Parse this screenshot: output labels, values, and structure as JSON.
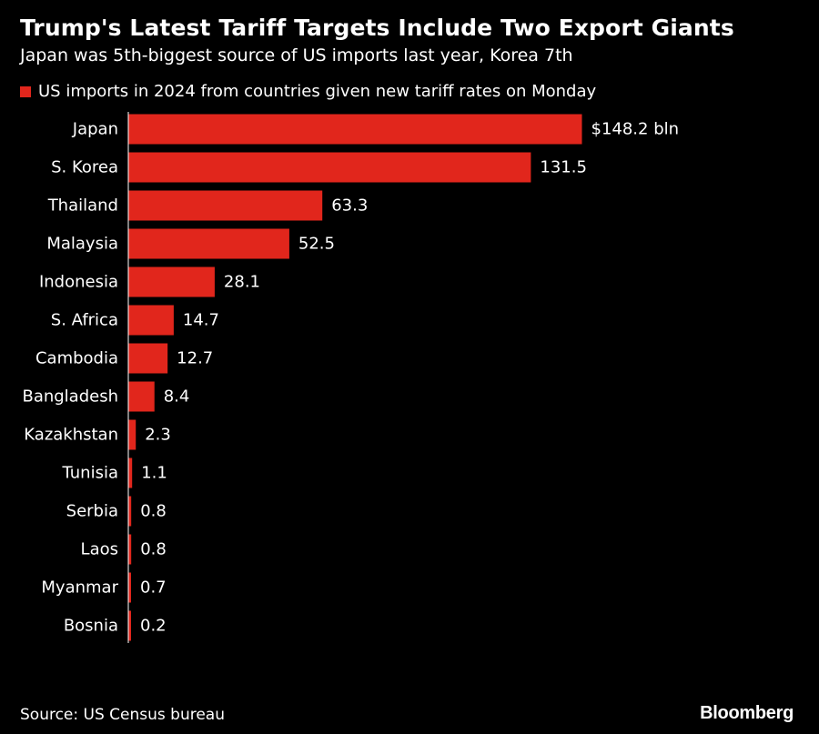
{
  "colors": {
    "background": "#000000",
    "bar": "#e1261c",
    "text": "#ffffff"
  },
  "chart_data": {
    "type": "bar",
    "orientation": "horizontal",
    "title": "Trump's Latest Tariff Targets Include Two Export Giants",
    "subtitle": "Japan was 5th-biggest source of US imports last year, Korea 7th",
    "legend": {
      "placement": "top-left",
      "entries": [
        "US imports in 2024 from countries given new tariff rates on Monday"
      ]
    },
    "categories": [
      "Japan",
      "S. Korea",
      "Thailand",
      "Malaysia",
      "Indonesia",
      "S. Africa",
      "Cambodia",
      "Bangladesh",
      "Kazakhstan",
      "Tunisia",
      "Serbia",
      "Laos",
      "Myanmar",
      "Bosnia"
    ],
    "values": [
      148.2,
      131.5,
      63.3,
      52.5,
      28.1,
      14.7,
      12.7,
      8.4,
      2.3,
      1.1,
      0.8,
      0.8,
      0.7,
      0.2
    ],
    "value_labels": [
      "$148.2 bln",
      "131.5",
      "63.3",
      "52.5",
      "28.1",
      "14.7",
      "12.7",
      "8.4",
      "2.3",
      "1.1",
      "0.8",
      "0.8",
      "0.7",
      "0.2"
    ],
    "xlim": [
      0,
      148.2
    ],
    "grid": false,
    "axis_line": true,
    "source": "Source: US Census bureau"
  },
  "branding": {
    "logo_text": "Bloomberg"
  }
}
